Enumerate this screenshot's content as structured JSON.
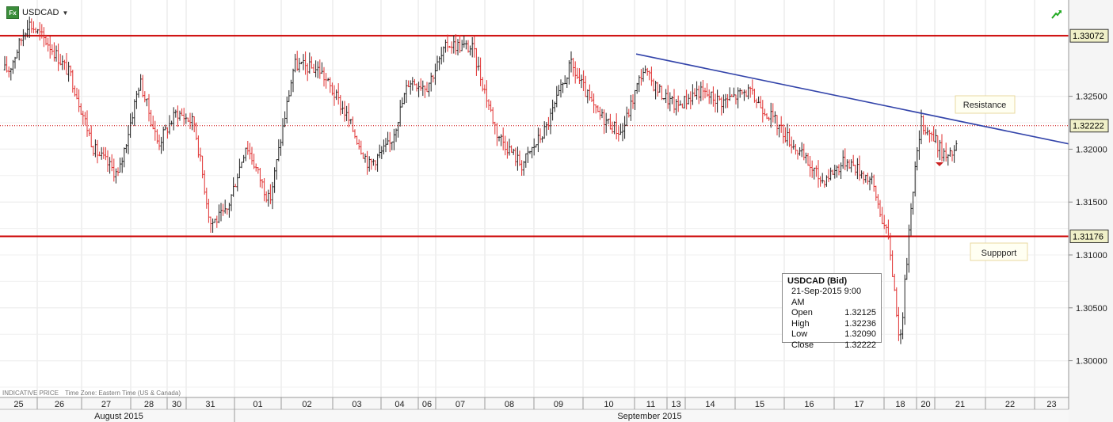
{
  "header": {
    "symbol": "USDCAD",
    "fx_badge": "Fx"
  },
  "footer": {
    "indicative": "INDICATIVE PRICE",
    "timezone": "Time Zone: Eastern Time (US & Canada)"
  },
  "tooltip": {
    "title": "USDCAD (Bid)",
    "datetime": "21-Sep-2015 9:00 AM",
    "rows": [
      {
        "label": "Open",
        "value": "1.32125"
      },
      {
        "label": "High",
        "value": "1.32236"
      },
      {
        "label": "Low",
        "value": "1.32090"
      },
      {
        "label": "Close",
        "value": "1.32222"
      }
    ]
  },
  "chart_data": {
    "type": "ohlc",
    "symbol": "USDCAD",
    "ylim": [
      1.2966,
      1.3375
    ],
    "y_ticks": [
      "1.32500",
      "1.32000",
      "1.31500",
      "1.31000",
      "1.30500",
      "1.30000"
    ],
    "price_tags": [
      {
        "value": "1.33072",
        "color": "#f0f0c8"
      },
      {
        "value": "1.32222",
        "color": "#f0f0c8"
      },
      {
        "value": "1.31176",
        "color": "#f0f0c8"
      }
    ],
    "day_labels": [
      "25",
      "26",
      "27",
      "28",
      "30",
      "31",
      "01",
      "02",
      "03",
      "04",
      "06",
      "07",
      "08",
      "09",
      "10",
      "11",
      "13",
      "14",
      "15",
      "16",
      "17",
      "18",
      "20",
      "21",
      "22",
      "23"
    ],
    "months": [
      "August 2015",
      "September 2015"
    ],
    "horizontal_lines": [
      {
        "name": "resistance-level",
        "value": 1.33072,
        "color": "#cc0000"
      },
      {
        "name": "support-level",
        "value": 1.31176,
        "color": "#cc0000"
      },
      {
        "name": "last-price-line",
        "value": 1.32222,
        "color": "#cc0000",
        "dotted": true
      }
    ],
    "trendline": {
      "color": "#3344aa",
      "from": {
        "day": "11",
        "price": 1.329
      },
      "to": {
        "day": "23",
        "price": 1.3205
      }
    },
    "annotations": [
      "Resistance",
      "Suppport"
    ],
    "close_path": [
      [
        "25",
        1.3275
      ],
      [
        "25",
        1.332
      ],
      [
        "26",
        1.33
      ],
      [
        "26",
        1.327
      ],
      [
        "27",
        1.32
      ],
      [
        "27",
        1.3175
      ],
      [
        "28",
        1.3265
      ],
      [
        "28",
        1.3205
      ],
      [
        "30",
        1.3235
      ],
      [
        "31",
        1.3225
      ],
      [
        "31",
        1.313
      ],
      [
        "31",
        1.314
      ],
      [
        "01",
        1.3205
      ],
      [
        "01",
        1.315
      ],
      [
        "02",
        1.328
      ],
      [
        "02",
        1.3275
      ],
      [
        "03",
        1.3235
      ],
      [
        "03",
        1.3185
      ],
      [
        "04",
        1.3205
      ],
      [
        "04",
        1.3265
      ],
      [
        "06",
        1.326
      ],
      [
        "07",
        1.33
      ],
      [
        "07",
        1.3295
      ],
      [
        "08",
        1.3215
      ],
      [
        "08",
        1.3185
      ],
      [
        "09",
        1.322
      ],
      [
        "09",
        1.328
      ],
      [
        "10",
        1.3235
      ],
      [
        "10",
        1.3215
      ],
      [
        "11",
        1.3275
      ],
      [
        "11",
        1.3255
      ],
      [
        "13",
        1.324
      ],
      [
        "14",
        1.3255
      ],
      [
        "14",
        1.3245
      ],
      [
        "15",
        1.3255
      ],
      [
        "15",
        1.323
      ],
      [
        "16",
        1.32
      ],
      [
        "16",
        1.317
      ],
      [
        "17",
        1.319
      ],
      [
        "17",
        1.317
      ],
      [
        "18",
        1.311
      ],
      [
        "18",
        1.3015
      ],
      [
        "18",
        1.315
      ],
      [
        "20",
        1.3225
      ],
      [
        "20",
        1.3215
      ],
      [
        "21",
        1.319
      ],
      [
        "21",
        1.3222
      ]
    ]
  }
}
